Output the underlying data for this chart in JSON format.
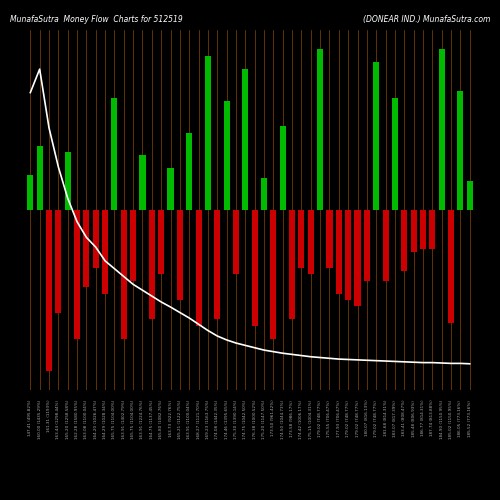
{
  "title_left": "MunafaSutra  Money Flow  Charts for 512519",
  "title_right": "(DONEAR IND.) MunafaSutra.com",
  "background_color": "#000000",
  "bar_color_positive": "#00bb00",
  "bar_color_negative": "#cc0000",
  "line_color": "#ffffff",
  "grid_color": "#8B4500",
  "categories": [
    "147.41 (495.82%)",
    "160.00 (1435.29%)",
    "161.31 (1193%)",
    "163.44 (1298.44%)",
    "165.20 (1258.58%)",
    "162.28 (1580.95%)",
    "163.08 (1100.04%)",
    "164.20 (1026.47%)",
    "164.29 (1028.34%)",
    "165.75 (1104.00%)",
    "163.91 (1402.79%)",
    "165.75 (1104.00%)",
    "163.91 (1224.76%)",
    "164.75 (1137.45%)",
    "165.80 (1082.76%)",
    "163.73 (922.76%)",
    "165.21 (1122.75%)",
    "163.91 (1100.04%)",
    "168.27 (1121.70%)",
    "169.23 (1163.75%)",
    "174.08 (1442.35%)",
    "174.46 (1395.65%)",
    "175.30 (1390.14%)",
    "174.75 (1042.50%)",
    "176.38 (1000.52%)",
    "175.20 (1147.50%)",
    "173.50 (961.42%)",
    "174.50 (1044.73%)",
    "173.58 (986.17%)",
    "174.42 (1006.17%)",
    "175.15 (1004.31%)",
    "179.02 (748.77%)",
    "175.55 (706.47%)",
    "177.93 (706.47%)",
    "179.02 (748.77%)",
    "179.02 (748.77%)",
    "180.07 (816.13%)",
    "179.02 (748.77%)",
    "181.68 (814.31%)",
    "183.07 (817.39%)",
    "183.41 (808.47%)",
    "185.48 (806.93%)",
    "186.77 (814.31%)",
    "187.74 (813.88%)",
    "184.90 (1150.95%)",
    "185.02 (1150.95%)",
    "186.05 (773.16%)",
    "185.52 (773.16%)"
  ],
  "bar_values": [
    55,
    100,
    -250,
    -160,
    90,
    -200,
    -120,
    -90,
    -130,
    175,
    -200,
    -110,
    85,
    -170,
    -100,
    65,
    -140,
    120,
    -180,
    240,
    -170,
    170,
    -100,
    220,
    -180,
    50,
    -200,
    130,
    -170,
    -90,
    -100,
    250,
    -90,
    -130,
    -140,
    -150,
    -110,
    230,
    -110,
    175,
    -95,
    -65,
    -60,
    -60,
    250,
    -175,
    185,
    45
  ],
  "line_values": [
    940,
    1000,
    850,
    750,
    670,
    610,
    570,
    545,
    510,
    490,
    470,
    450,
    435,
    420,
    405,
    392,
    378,
    364,
    348,
    332,
    318,
    308,
    300,
    294,
    288,
    282,
    278,
    274,
    271,
    268,
    265,
    263,
    261,
    259,
    258,
    257,
    256,
    255,
    254,
    253,
    252,
    251,
    250,
    250,
    249,
    248,
    248,
    247
  ],
  "ylim_bar": [
    -280,
    280
  ],
  "ylim_line": [
    180,
    1100
  ]
}
